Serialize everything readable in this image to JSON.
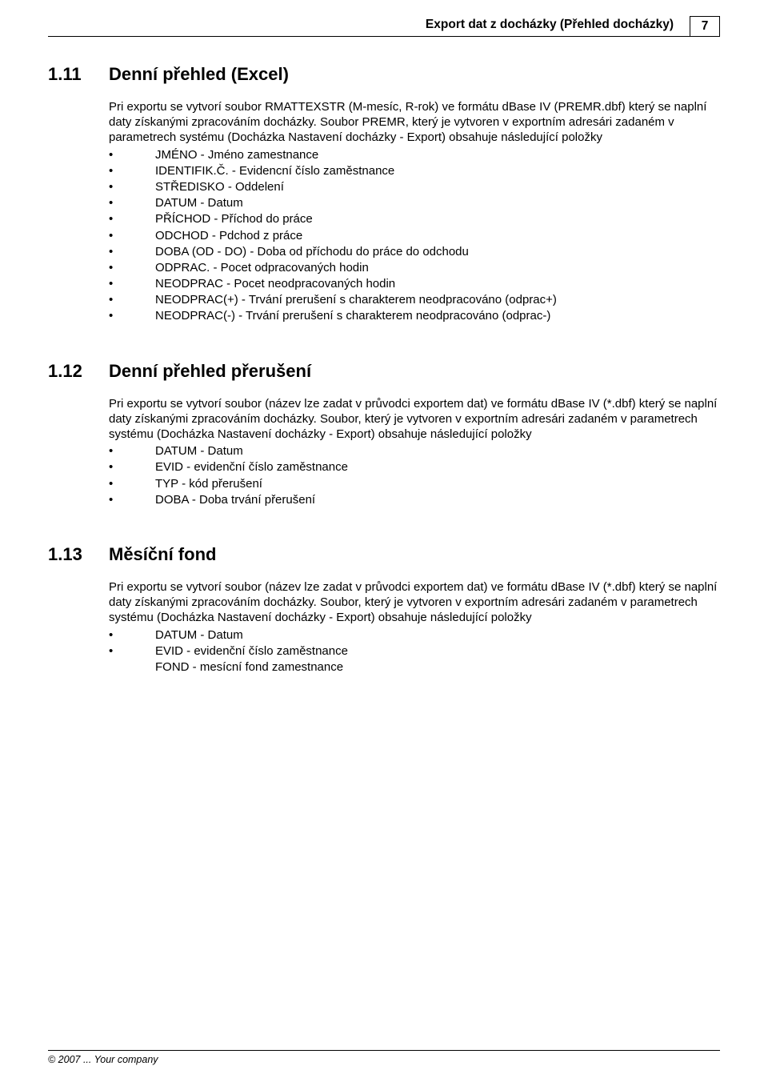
{
  "colors": {
    "text": "#000000",
    "background": "#ffffff",
    "rule": "#000000"
  },
  "typography": {
    "body_font": "Arial",
    "body_size_pt": 11,
    "heading_size_pt": 16,
    "heading_weight": "bold"
  },
  "header": {
    "title": "Export dat z docházky (Přehled docházky)",
    "page_number": "7"
  },
  "footer": {
    "text": "© 2007 ... Your company"
  },
  "sections": [
    {
      "number": "1.11",
      "title": "Denní přehled (Excel)",
      "intro": "Pri exportu se vytvorí soubor RMATTEXSTR (M-mesíc, R-rok) ve formátu dBase IV (PREMR.dbf) který se naplní daty získanými zpracováním docházky. Soubor PREMR, který je vytvoren v exportním adresári zadaném v parametrech systému (Docházka Nastavení docházky - Export) obsahuje následující položky",
      "items": [
        {
          "text": "JMÉNO -  Jméno  zamestnance",
          "bullet": true
        },
        {
          "text": "IDENTIFIK.Č. - Evidencní číslo zaměstnance",
          "bullet": true
        },
        {
          "text": "STŘEDISKO - Oddelení",
          "bullet": true
        },
        {
          "text": "DATUM - Datum",
          "bullet": true
        },
        {
          "text": "PŘÍCHOD - Příchod do práce",
          "bullet": true
        },
        {
          "text": "ODCHOD - Pdchod z práce",
          "bullet": true
        },
        {
          "text": "DOBA (OD - DO) - Doba od příchodu do práce do odchodu",
          "bullet": true
        },
        {
          "text": "ODPRAC. - Pocet odpracovaných hodin",
          "bullet": true
        },
        {
          "text": "NEODPRAC - Pocet neodpracovaných hodin",
          "bullet": true
        },
        {
          "text": "NEODPRAC(+) - Trvání prerušení s charakterem neodpracováno (odprac+)",
          "bullet": true
        },
        {
          "text": "NEODPRAC(-) - Trvání prerušení s charakterem neodpracováno (odprac-)",
          "bullet": true
        }
      ]
    },
    {
      "number": "1.12",
      "title": "Denní přehled přerušení",
      "intro": "Pri exportu se vytvorí soubor (název lze zadat v průvodci exportem dat) ve formátu dBase IV (*.dbf) který se naplní daty získanými zpracováním docházky. Soubor, který je vytvoren v exportním adresári zadaném v parametrech systému (Docházka Nastavení docházky - Export) obsahuje následující položky",
      "items": [
        {
          "text": "DATUM - Datum",
          "bullet": true
        },
        {
          "text": "EVID - evidenční číslo zaměstnance",
          "bullet": true
        },
        {
          "text": "TYP  - kód přerušení",
          "bullet": true
        },
        {
          "text": "DOBA - Doba trvání přerušení",
          "bullet": true
        }
      ]
    },
    {
      "number": "1.13",
      "title": "Měsíční fond",
      "intro": "Pri exportu se vytvorí soubor (název lze zadat v průvodci exportem dat) ve formátu dBase IV (*.dbf) který se naplní daty získanými zpracováním docházky. Soubor, který je vytvoren v exportním adresári zadaném v parametrech systému (Docházka Nastavení docházky - Export) obsahuje následující položky",
      "items": [
        {
          "text": "DATUM - Datum",
          "bullet": true
        },
        {
          "text": "EVID - evidenční číslo zaměstnance",
          "bullet": true
        },
        {
          "text": "FOND  - mesícní fond zamestnance",
          "bullet": false
        }
      ]
    }
  ]
}
